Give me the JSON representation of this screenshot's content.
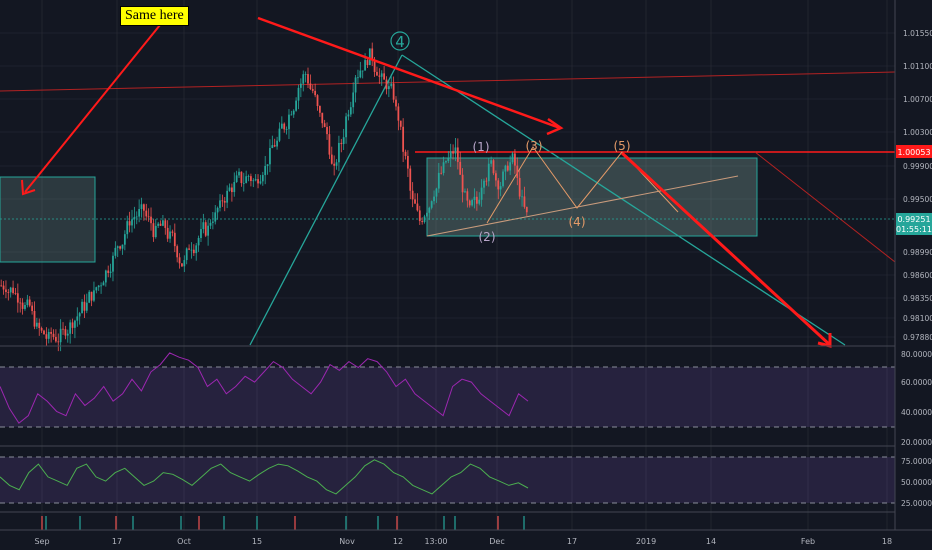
{
  "annotation_note": "Same here",
  "colors": {
    "background": "#131722",
    "up": "#26a69a",
    "down": "#ef5350",
    "grid": "#2a2e39",
    "axis_text": "#b2b5be",
    "red_line": "#ff1a1a",
    "teal_line": "#26a69a",
    "orange_wave": "#e39a68",
    "rsi_line": "#9c27b0",
    "stoch_line": "#4caf50",
    "price_label": "#ff1a1a",
    "current_label": "#26a69a"
  },
  "price_axis": [
    "1.01550",
    "1.01100",
    "1.00700",
    "1.00300",
    "0.99900",
    "0.99500",
    "0.98990",
    "0.98600",
    "0.98350",
    "0.98100",
    "0.97880"
  ],
  "rsi_axis": [
    "80.0000",
    "60.0000",
    "40.0000",
    "20.0000"
  ],
  "stoch_axis": [
    "75.0000",
    "50.0000",
    "25.0000"
  ],
  "time_axis": [
    "Sep",
    "17",
    "Oct",
    "15",
    "Nov",
    "12",
    "13:00",
    "Dec",
    "17",
    "2019",
    "14",
    "Feb",
    "18"
  ],
  "price_labels": {
    "level": "1.00053",
    "current": "0.99251",
    "countdown": "01:55:11"
  },
  "wave_labels": {
    "main": "4",
    "w1": "(1)",
    "w2": "(2)",
    "w3": "(3)",
    "w4": "(4)",
    "w5": "(5)"
  },
  "chart_data": {
    "type": "candlestick",
    "symbol_context": "Price chart with RSI and Stochastic panes",
    "price_close": [
      0.9845,
      0.9841,
      0.9832,
      0.982,
      0.9805,
      0.979,
      0.9783,
      0.9785,
      0.979,
      0.9798,
      0.981,
      0.9822,
      0.9835,
      0.9845,
      0.986,
      0.9875,
      0.9895,
      0.9912,
      0.9925,
      0.993,
      0.992,
      0.9905,
      0.9912,
      0.99,
      0.9885,
      0.987,
      0.9893,
      0.99,
      0.991,
      0.9925,
      0.9935,
      0.995,
      0.996,
      0.9968,
      0.9972,
      0.9965,
      0.998,
      0.9995,
      1.001,
      1.003,
      1.005,
      1.0075,
      1.009,
      1.007,
      1.004,
      1.002,
      0.9975,
      1.001,
      1.005,
      1.009,
      1.01,
      1.011,
      1.0095,
      1.008,
      1.007,
      1.004,
      0.999,
      0.994,
      0.992,
      0.9935,
      0.9955,
      0.9975,
      0.999,
      1.0,
      0.996,
      0.993,
      0.994,
      0.9975,
      0.9985,
      0.9965,
      0.9975,
      0.999,
      0.9955,
      0.9925
    ],
    "rsi": [
      55,
      40,
      30,
      35,
      50,
      45,
      38,
      35,
      50,
      42,
      47,
      55,
      45,
      50,
      60,
      52,
      65,
      70,
      78,
      75,
      73,
      68,
      55,
      60,
      50,
      55,
      62,
      58,
      65,
      72,
      68,
      60,
      55,
      50,
      58,
      70,
      66,
      72,
      68,
      74,
      72,
      65,
      55,
      60,
      50,
      45,
      40,
      35,
      55,
      60,
      58,
      50,
      45,
      40,
      35,
      50,
      45
    ],
    "stoch": [
      55,
      45,
      40,
      60,
      70,
      55,
      50,
      45,
      65,
      70,
      55,
      50,
      60,
      65,
      55,
      45,
      50,
      60,
      58,
      52,
      45,
      55,
      65,
      70,
      60,
      55,
      50,
      58,
      65,
      70,
      68,
      62,
      55,
      50,
      40,
      35,
      45,
      55,
      68,
      75,
      70,
      60,
      55,
      45,
      40,
      35,
      45,
      55,
      60,
      70,
      65,
      55,
      50,
      45,
      48,
      42
    ],
    "horizontal_level": 1.00053,
    "current_price": 0.99251,
    "price_range": [
      0.9775,
      1.0175
    ],
    "rsi_range": [
      15,
      82
    ],
    "stoch_range": [
      15,
      90
    ]
  }
}
